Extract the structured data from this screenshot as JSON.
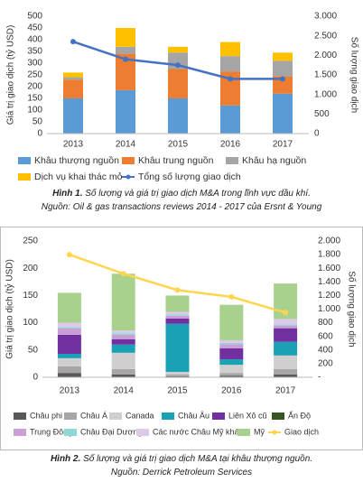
{
  "chart_data": [
    {
      "type": "bar",
      "stacked": true,
      "y_label": "Giá trị giao dịch (tỷ USD)",
      "y2_label": "Số lượng giao dịch",
      "categories": [
        "2013",
        "2014",
        "2015",
        "2016",
        "2017"
      ],
      "ylim": [
        0,
        500
      ],
      "yticks": [
        0,
        50,
        100,
        150,
        200,
        250,
        300,
        350,
        400,
        450,
        500
      ],
      "y2lim": [
        0,
        3000
      ],
      "y2ticks": [
        0,
        500,
        {
          "value": 1000,
          "label": "1.000"
        },
        {
          "value": 1500,
          "label": "1.500"
        },
        {
          "value": 2000,
          "label": "2.000"
        },
        {
          "value": 2500,
          "label": "2.500"
        },
        {
          "value": 3000,
          "label": "3.000"
        }
      ],
      "grid": false,
      "series": [
        {
          "name": "Khâu thượng nguồn",
          "color": "#5b9bd5",
          "values": [
            150,
            185,
            150,
            120,
            170
          ]
        },
        {
          "name": "Khâu trung nguồn",
          "color": "#ed7d31",
          "values": [
            80,
            155,
            125,
            145,
            75
          ]
        },
        {
          "name": "Khâu hạ nguồn",
          "color": "#a5a5a5",
          "values": [
            10,
            30,
            70,
            65,
            65
          ]
        },
        {
          "name": "Dịch vụ khai thác mỏ",
          "color": "#ffc000",
          "values": [
            20,
            80,
            25,
            60,
            35
          ]
        },
        {
          "name": "Tổng số lượng giao dịch",
          "color": "#4472c4",
          "axis": "y2",
          "type": "line",
          "values": [
            2350,
            1900,
            1750,
            1400,
            1400
          ]
        }
      ],
      "caption_label": "Hình 1.",
      "caption": "Số lượng và giá trị giao dịch M&A trong lĩnh vực dầu khí.",
      "source": "Nguồn: Oil & gas transactions reviews 2014 - 2017 của Ersnt & Young"
    },
    {
      "type": "bar",
      "stacked": true,
      "y_label": "Giá trị giao dịch (tỷ USD)",
      "y2_label": "Số lượng giao dịch",
      "categories": [
        "2013",
        "2014",
        "2015",
        "2016",
        "2017"
      ],
      "ylim": [
        0,
        250
      ],
      "yticks": [
        0,
        50,
        100,
        150,
        200,
        250
      ],
      "y2lim": [
        0,
        2000
      ],
      "y2ticks": [
        {
          "value": 0,
          "label": "-"
        },
        200,
        400,
        600,
        800,
        {
          "value": 1000,
          "label": "1.000"
        },
        {
          "value": 1200,
          "label": "1.200"
        },
        {
          "value": 1400,
          "label": "1.400"
        },
        {
          "value": 1600,
          "label": "1.600"
        },
        {
          "value": 1800,
          "label": "1.800"
        },
        {
          "value": 2000,
          "label": "2.000"
        }
      ],
      "grid": false,
      "series": [
        {
          "name": "Châu phi",
          "color": "#595959",
          "values": [
            8,
            5,
            2,
            3,
            5
          ]
        },
        {
          "name": "Châu Á",
          "color": "#a6a6a6",
          "values": [
            12,
            10,
            3,
            5,
            10
          ]
        },
        {
          "name": "Canada",
          "color": "#d0cece",
          "values": [
            15,
            30,
            5,
            15,
            25
          ]
        },
        {
          "name": "Châu Âu",
          "color": "#1ba1b5",
          "values": [
            8,
            15,
            88,
            10,
            25
          ]
        },
        {
          "name": "Liên Xô cũ",
          "color": "#7030a0",
          "values": [
            35,
            10,
            10,
            20,
            25
          ]
        },
        {
          "name": "Ấn Độ",
          "color": "#375623",
          "values": [
            0,
            0,
            0,
            0,
            0
          ]
        },
        {
          "name": "Trung Đông",
          "color": "#c99fd6",
          "values": [
            12,
            8,
            5,
            8,
            5
          ]
        },
        {
          "name": "Châu Đại Dương",
          "color": "#8fd8d8",
          "values": [
            2,
            3,
            2,
            2,
            2
          ]
        },
        {
          "name": "Các nước Châu Mỹ khác",
          "color": "#dccbe8",
          "values": [
            8,
            5,
            5,
            5,
            10
          ]
        },
        {
          "name": "Mỹ",
          "color": "#a9d18e",
          "values": [
            55,
            104,
            30,
            65,
            65
          ]
        },
        {
          "name": "Giao dịch",
          "color": "#ffd54f",
          "axis": "y2",
          "type": "line",
          "values": [
            1800,
            1520,
            1280,
            1180,
            950
          ]
        }
      ],
      "caption_label": "Hình 2.",
      "caption": "Số lượng và giá trị giao dịch M&A tại khâu thượng nguồn.",
      "source": "Nguồn: Derrick Petroleum Services"
    }
  ]
}
